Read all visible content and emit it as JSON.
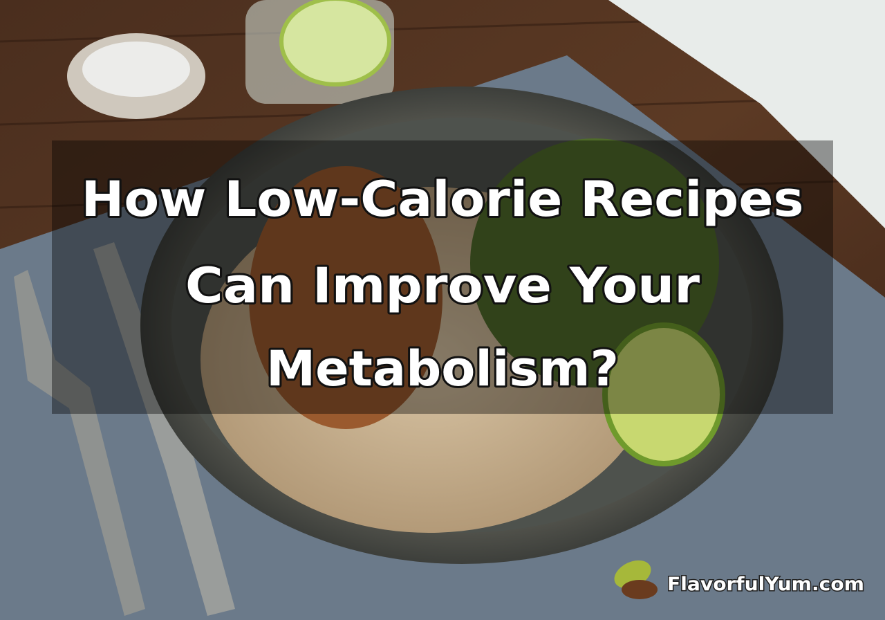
{
  "title": {
    "lines": [
      "How Low-Calorie Recipes",
      "Can Improve Your",
      "Metabolism?"
    ]
  },
  "watermark": "FlavorfulYum.com"
}
